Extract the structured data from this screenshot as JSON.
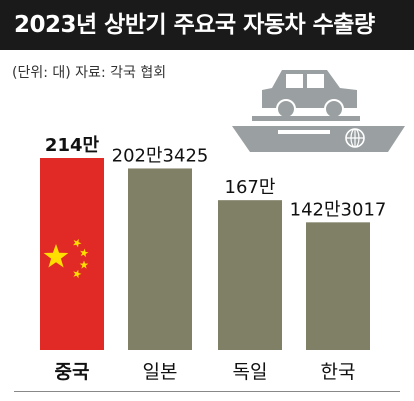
{
  "header": {
    "title": "2023년 상반기 주요국 자동차 수출량",
    "note": "(단위: 대)  자료: 각국 협회"
  },
  "colors": {
    "header_bg": "#1a1a1a",
    "bar": "#808066",
    "china_flag": "#e12a26",
    "flag_star": "#ffde00",
    "ship": "#9aa0a2"
  },
  "illustration": {
    "icon": "cargo-ship-with-car-icon"
  },
  "chart_data": {
    "type": "bar",
    "title": "2023년 상반기 주요국 자동차 수출량",
    "unit": "대",
    "categories": [
      "중국",
      "일본",
      "독일",
      "한국"
    ],
    "values": [
      2140000,
      2023425,
      1670000,
      1423017
    ],
    "value_labels": [
      "214만",
      "202만3425",
      "167만",
      "142만3017"
    ],
    "highlight": "중국",
    "ylim": [
      0,
      2140000
    ],
    "grid": false,
    "legend": "none"
  }
}
